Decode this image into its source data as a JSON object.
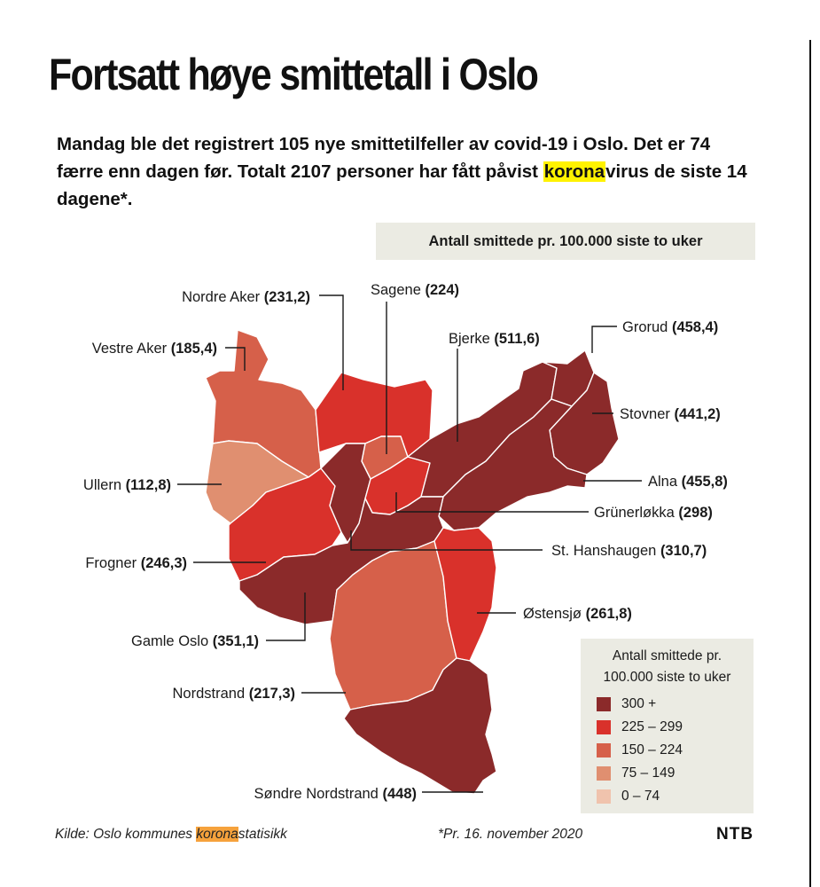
{
  "title": "Fortsatt høye smittetall i Oslo",
  "lead": {
    "part1": "Mandag ble det registrert 105 nye smittetilfeller av covid-19 i Oslo. Det er 74 færre enn dagen før. Totalt 2107 personer har fått påvist ",
    "highlight": "korona",
    "part2": "virus de siste 14 dagene*."
  },
  "subhead": "Antall smittede pr. 100.000 siste to uker",
  "districts": [
    {
      "name": "Nordre Aker",
      "value": "(231,2)",
      "color": "#d9312b"
    },
    {
      "name": "Sagene",
      "value": "(224)",
      "color": "#d6604a"
    },
    {
      "name": "Vestre Aker",
      "value": "(185,4)",
      "color": "#d6604a"
    },
    {
      "name": "Bjerke",
      "value": "(511,6)",
      "color": "#8b2a2a"
    },
    {
      "name": "Grorud",
      "value": "(458,4)",
      "color": "#8b2a2a"
    },
    {
      "name": "Stovner",
      "value": "(441,2)",
      "color": "#8b2a2a"
    },
    {
      "name": "Ullern",
      "value": "(112,8)",
      "color": "#e08f70"
    },
    {
      "name": "Alna",
      "value": "(455,8)",
      "color": "#8b2a2a"
    },
    {
      "name": "Grünerløkka",
      "value": "(298)",
      "color": "#d9312b"
    },
    {
      "name": "Frogner",
      "value": "(246,3)",
      "color": "#d9312b"
    },
    {
      "name": "St. Hanshaugen",
      "value": "(310,7)",
      "color": "#8b2a2a"
    },
    {
      "name": "Østensjø",
      "value": "(261,8)",
      "color": "#d9312b"
    },
    {
      "name": "Gamle Oslo",
      "value": "(351,1)",
      "color": "#8b2a2a"
    },
    {
      "name": "Nordstrand",
      "value": "(217,3)",
      "color": "#d6604a"
    },
    {
      "name": "Søndre Nordstrand",
      "value": "(448)",
      "color": "#8b2a2a"
    }
  ],
  "legend": {
    "title_line1": "Antall smittede pr.",
    "title_line2": "100.000 siste to uker",
    "items": [
      {
        "label": "300 +",
        "color": "#8b2a2a"
      },
      {
        "label": "225 – 299",
        "color": "#d9312b"
      },
      {
        "label": "150 – 224",
        "color": "#d6604a"
      },
      {
        "label": "75 – 149",
        "color": "#e08f70"
      },
      {
        "label": "0 – 74",
        "color": "#f0c3ad"
      }
    ]
  },
  "footer": {
    "source_pre": "Kilde: Oslo kommunes ",
    "source_highlight": "korona",
    "source_post": "statisikk",
    "date_note": "*Pr. 16. november 2020",
    "logo": "NTB"
  }
}
